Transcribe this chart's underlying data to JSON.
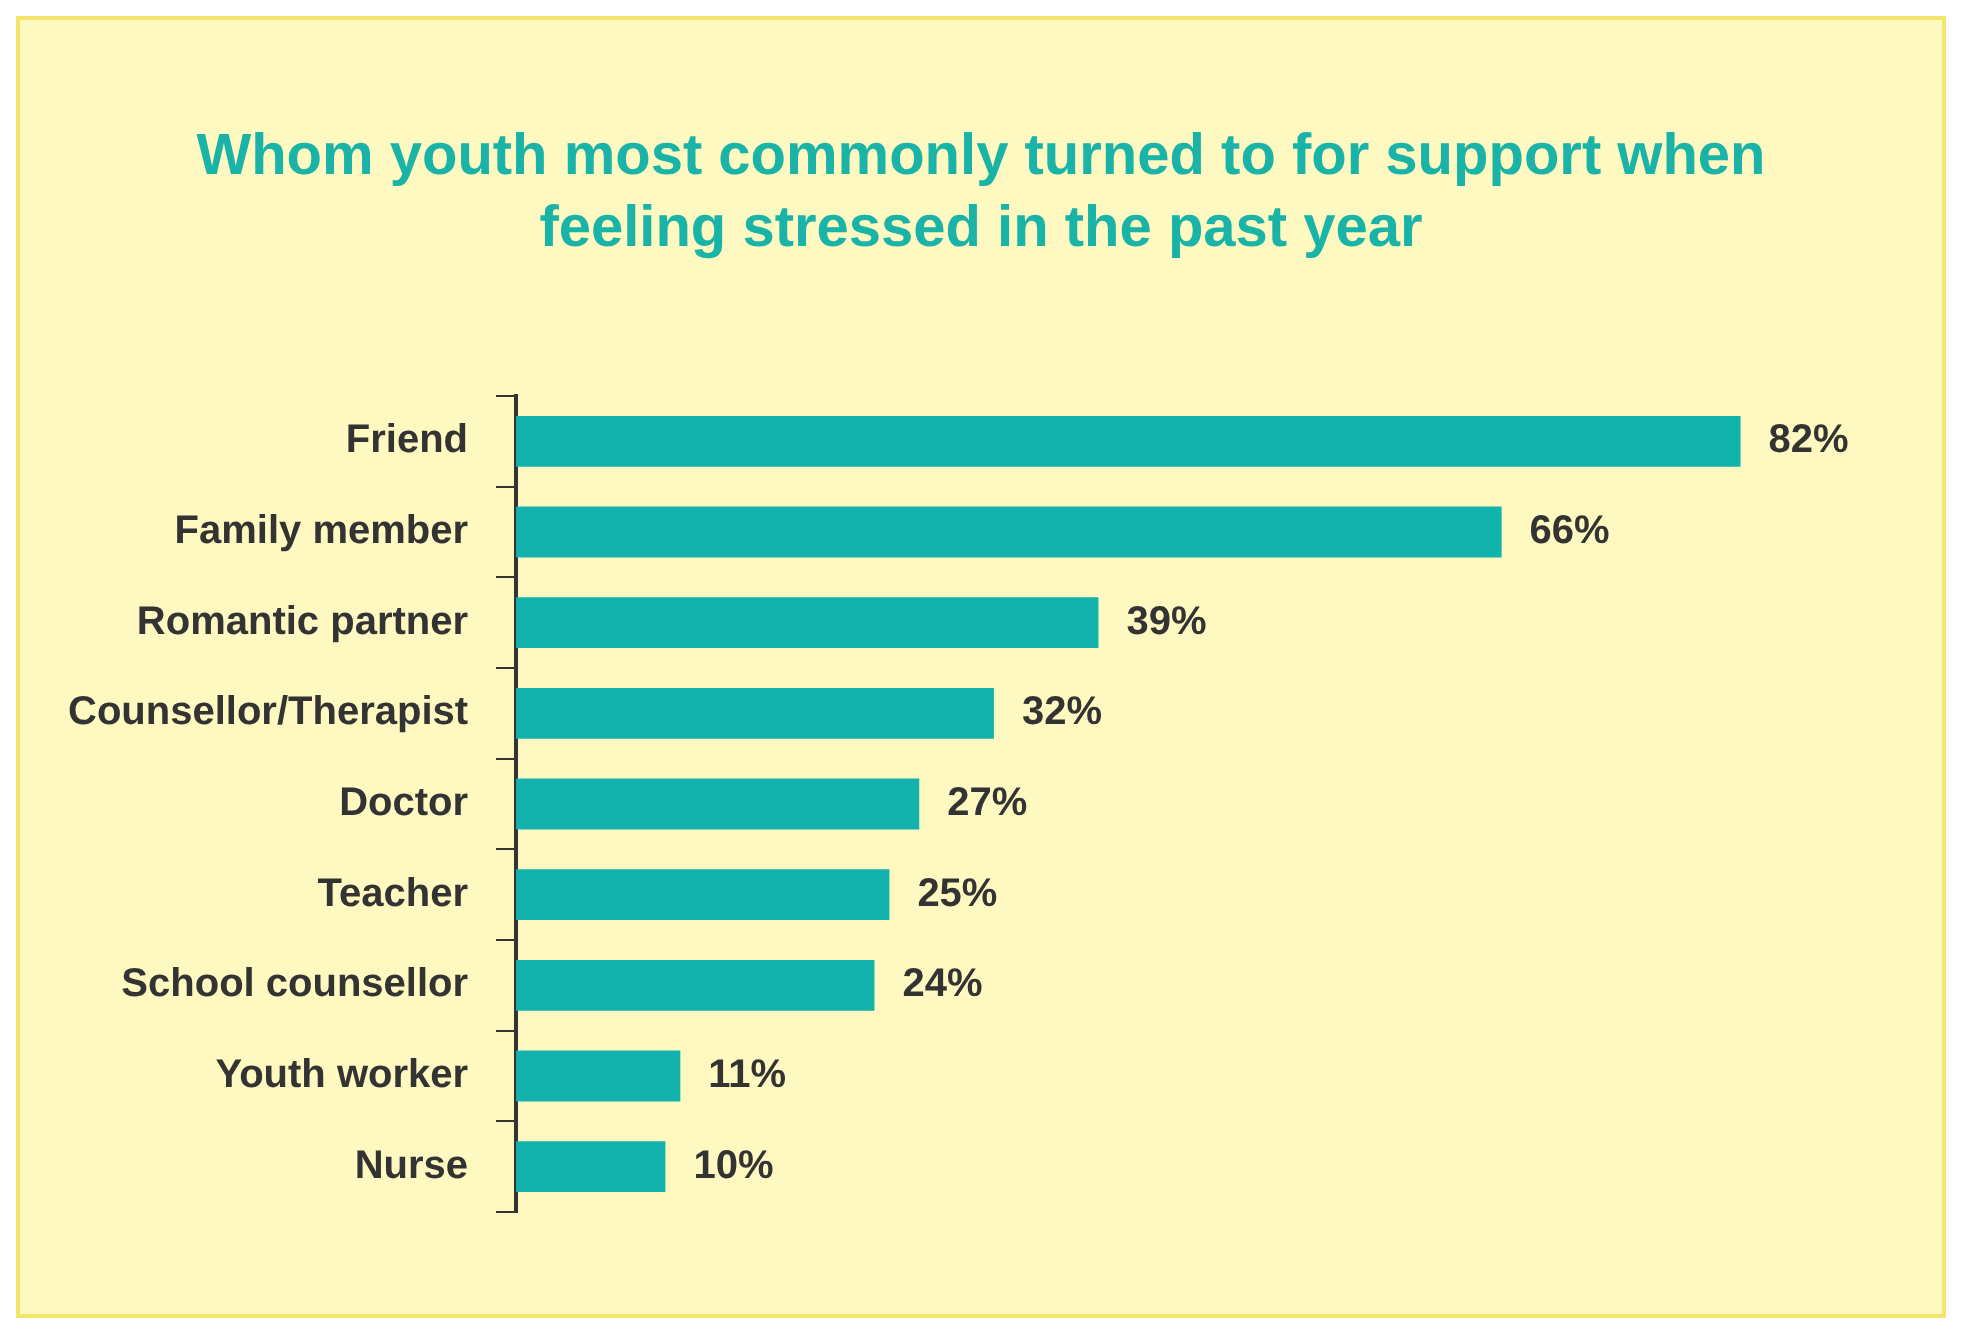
{
  "chart_data": {
    "type": "bar",
    "orientation": "horizontal",
    "title": "Whom youth most commonly turned to for support when feeling stressed in the past year",
    "categories": [
      "Friend",
      "Family member",
      "Romantic partner",
      "Counsellor/Therapist",
      "Doctor",
      "Teacher",
      "School counsellor",
      "Youth worker",
      "Nurse"
    ],
    "values": [
      82,
      66,
      39,
      32,
      27,
      25,
      24,
      11,
      10
    ],
    "value_labels": [
      "82%",
      "66%",
      "39%",
      "32%",
      "27%",
      "25%",
      "24%",
      "11%",
      "10%"
    ],
    "color": "#12b3ad",
    "legend": false
  }
}
